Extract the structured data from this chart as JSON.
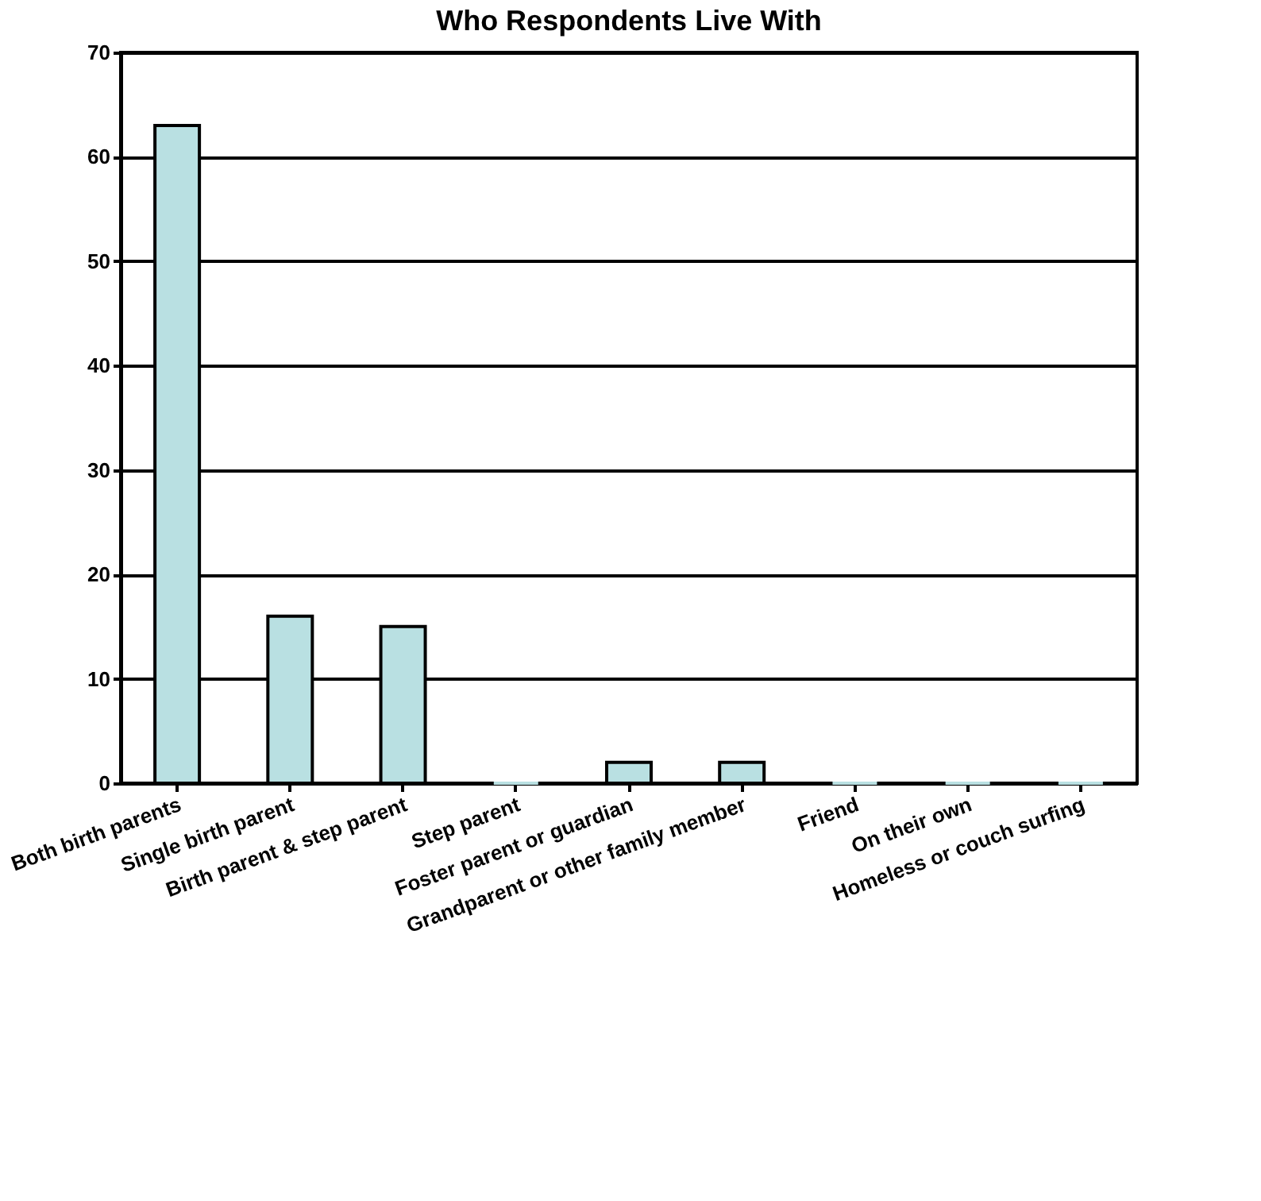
{
  "chart_data": {
    "type": "bar",
    "title": "Who Respondents Live With",
    "categories": [
      "Both birth parents",
      "Single birth parent",
      "Birth parent & step parent",
      "Step parent",
      "Foster parent or guardian",
      "Grandparent or other family member",
      "Friend",
      "On their own",
      "Homeless or couch surfing"
    ],
    "values": [
      63,
      16,
      15,
      0,
      2,
      2,
      0,
      0,
      0
    ],
    "color": "#b9e0e2",
    "ylim": [
      0,
      70
    ],
    "yticks": [
      0,
      10,
      20,
      30,
      40,
      50,
      60,
      70
    ],
    "grid": "y"
  }
}
